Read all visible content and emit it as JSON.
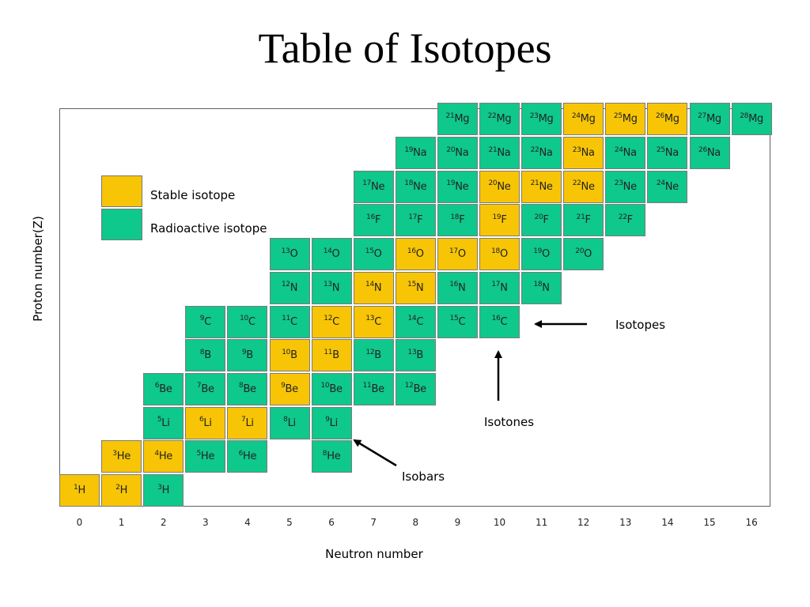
{
  "title": "Table of Isotopes",
  "legend": {
    "stable": {
      "label": "Stable isotope",
      "color": "#f7c505"
    },
    "radioactive": {
      "label": "Radioactive isotope",
      "color": "#0fc88b"
    }
  },
  "annotations": {
    "isotopes": "Isotopes",
    "isotones": "Isotones",
    "isobars": "Isobars"
  },
  "chart_data": {
    "type": "table",
    "xlabel": "Neutron number",
    "ylabel": "Proton number(Z)",
    "x_ticks": [
      "0",
      "1",
      "2",
      "3",
      "4",
      "5",
      "6",
      "7",
      "8",
      "9",
      "10",
      "11",
      "12",
      "13",
      "14",
      "15",
      "16"
    ],
    "rows": [
      {
        "symbol": "H",
        "z": 1,
        "isotopes": [
          {
            "a": 1,
            "n": 0,
            "stable": true
          },
          {
            "a": 2,
            "n": 1,
            "stable": true
          },
          {
            "a": 3,
            "n": 2,
            "stable": false
          }
        ]
      },
      {
        "symbol": "He",
        "z": 2,
        "isotopes": [
          {
            "a": 3,
            "n": 1,
            "stable": true
          },
          {
            "a": 4,
            "n": 2,
            "stable": true
          },
          {
            "a": 5,
            "n": 3,
            "stable": false
          },
          {
            "a": 6,
            "n": 4,
            "stable": false
          },
          {
            "a": 8,
            "n": 6,
            "stable": false
          }
        ]
      },
      {
        "symbol": "Li",
        "z": 3,
        "isotopes": [
          {
            "a": 5,
            "n": 2,
            "stable": false
          },
          {
            "a": 6,
            "n": 3,
            "stable": true
          },
          {
            "a": 7,
            "n": 4,
            "stable": true
          },
          {
            "a": 8,
            "n": 5,
            "stable": false
          },
          {
            "a": 9,
            "n": 6,
            "stable": false
          }
        ]
      },
      {
        "symbol": "Be",
        "z": 4,
        "isotopes": [
          {
            "a": 6,
            "n": 2,
            "stable": false
          },
          {
            "a": 7,
            "n": 3,
            "stable": false
          },
          {
            "a": 8,
            "n": 4,
            "stable": false
          },
          {
            "a": 9,
            "n": 5,
            "stable": true
          },
          {
            "a": 10,
            "n": 6,
            "stable": false
          },
          {
            "a": 11,
            "n": 7,
            "stable": false
          },
          {
            "a": 12,
            "n": 8,
            "stable": false
          }
        ]
      },
      {
        "symbol": "B",
        "z": 5,
        "isotopes": [
          {
            "a": 8,
            "n": 3,
            "stable": false
          },
          {
            "a": 9,
            "n": 4,
            "stable": false
          },
          {
            "a": 10,
            "n": 5,
            "stable": true
          },
          {
            "a": 11,
            "n": 6,
            "stable": true
          },
          {
            "a": 12,
            "n": 7,
            "stable": false
          },
          {
            "a": 13,
            "n": 8,
            "stable": false
          }
        ]
      },
      {
        "symbol": "C",
        "z": 6,
        "isotopes": [
          {
            "a": 9,
            "n": 3,
            "stable": false
          },
          {
            "a": 10,
            "n": 4,
            "stable": false
          },
          {
            "a": 11,
            "n": 5,
            "stable": false
          },
          {
            "a": 12,
            "n": 6,
            "stable": true
          },
          {
            "a": 13,
            "n": 7,
            "stable": true
          },
          {
            "a": 14,
            "n": 8,
            "stable": false
          },
          {
            "a": 15,
            "n": 9,
            "stable": false
          },
          {
            "a": 16,
            "n": 10,
            "stable": false
          }
        ]
      },
      {
        "symbol": "N",
        "z": 7,
        "isotopes": [
          {
            "a": 12,
            "n": 5,
            "stable": false
          },
          {
            "a": 13,
            "n": 6,
            "stable": false
          },
          {
            "a": 14,
            "n": 7,
            "stable": true
          },
          {
            "a": 15,
            "n": 8,
            "stable": true
          },
          {
            "a": 16,
            "n": 9,
            "stable": false
          },
          {
            "a": 17,
            "n": 10,
            "stable": false
          },
          {
            "a": 18,
            "n": 11,
            "stable": false
          }
        ]
      },
      {
        "symbol": "O",
        "z": 8,
        "isotopes": [
          {
            "a": 13,
            "n": 5,
            "stable": false
          },
          {
            "a": 14,
            "n": 6,
            "stable": false
          },
          {
            "a": 15,
            "n": 7,
            "stable": false
          },
          {
            "a": 16,
            "n": 8,
            "stable": true
          },
          {
            "a": 17,
            "n": 9,
            "stable": true
          },
          {
            "a": 18,
            "n": 10,
            "stable": true
          },
          {
            "a": 19,
            "n": 11,
            "stable": false
          },
          {
            "a": 20,
            "n": 12,
            "stable": false
          }
        ]
      },
      {
        "symbol": "F",
        "z": 9,
        "isotopes": [
          {
            "a": 16,
            "n": 7,
            "stable": false
          },
          {
            "a": 17,
            "n": 8,
            "stable": false
          },
          {
            "a": 18,
            "n": 9,
            "stable": false
          },
          {
            "a": 19,
            "n": 10,
            "stable": true
          },
          {
            "a": 20,
            "n": 11,
            "stable": false
          },
          {
            "a": 21,
            "n": 12,
            "stable": false
          },
          {
            "a": 22,
            "n": 13,
            "stable": false
          }
        ]
      },
      {
        "symbol": "Ne",
        "z": 10,
        "isotopes": [
          {
            "a": 17,
            "n": 7,
            "stable": false
          },
          {
            "a": 18,
            "n": 8,
            "stable": false
          },
          {
            "a": 19,
            "n": 9,
            "stable": false
          },
          {
            "a": 20,
            "n": 10,
            "stable": true
          },
          {
            "a": 21,
            "n": 11,
            "stable": true
          },
          {
            "a": 22,
            "n": 12,
            "stable": true
          },
          {
            "a": 23,
            "n": 13,
            "stable": false
          },
          {
            "a": 24,
            "n": 14,
            "stable": false
          }
        ]
      },
      {
        "symbol": "Na",
        "z": 11,
        "isotopes": [
          {
            "a": 19,
            "n": 8,
            "stable": false
          },
          {
            "a": 20,
            "n": 9,
            "stable": false
          },
          {
            "a": 21,
            "n": 10,
            "stable": false
          },
          {
            "a": 22,
            "n": 11,
            "stable": false
          },
          {
            "a": 23,
            "n": 12,
            "stable": true
          },
          {
            "a": 24,
            "n": 13,
            "stable": false
          },
          {
            "a": 25,
            "n": 14,
            "stable": false
          },
          {
            "a": 26,
            "n": 15,
            "stable": false
          }
        ]
      },
      {
        "symbol": "Mg",
        "z": 12,
        "isotopes": [
          {
            "a": 21,
            "n": 9,
            "stable": false
          },
          {
            "a": 22,
            "n": 10,
            "stable": false
          },
          {
            "a": 23,
            "n": 11,
            "stable": false
          },
          {
            "a": 24,
            "n": 12,
            "stable": true
          },
          {
            "a": 25,
            "n": 13,
            "stable": true
          },
          {
            "a": 26,
            "n": 14,
            "stable": true
          },
          {
            "a": 27,
            "n": 15,
            "stable": false
          },
          {
            "a": 28,
            "n": 16,
            "stable": false
          }
        ]
      }
    ]
  }
}
